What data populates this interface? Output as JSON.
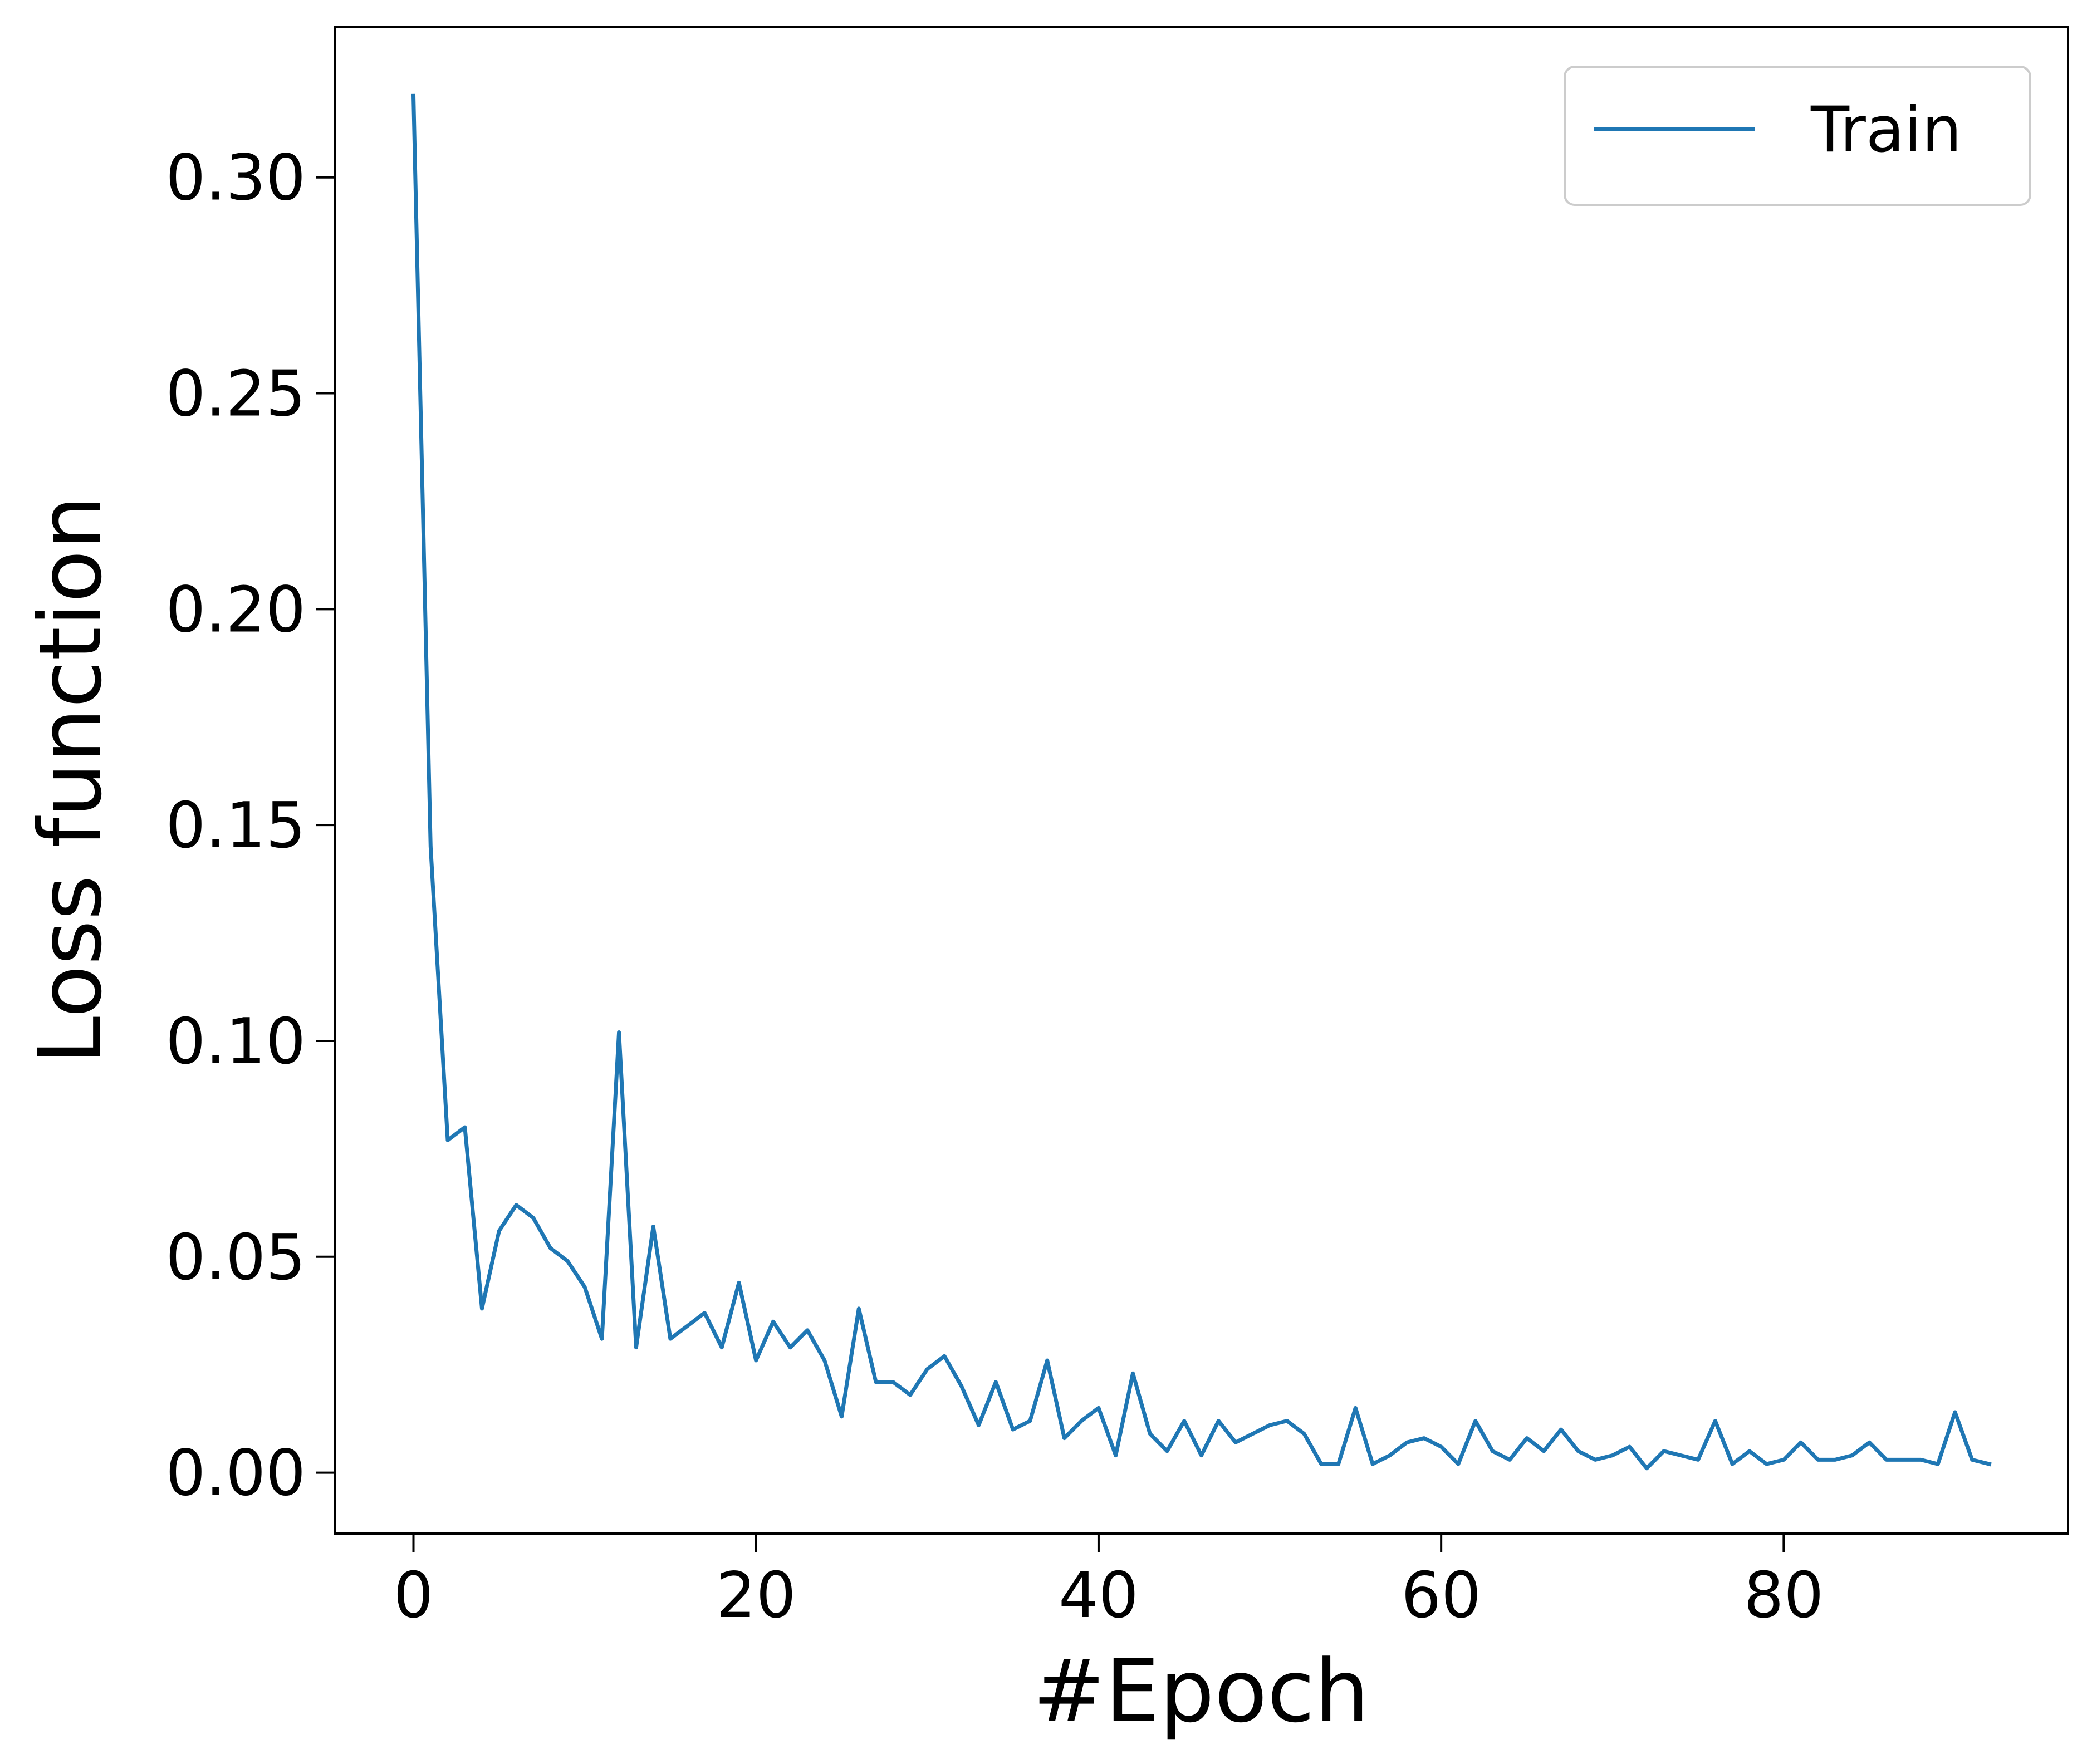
{
  "chart_data": {
    "type": "line",
    "xlabel": "#Epoch",
    "ylabel": "Loss function",
    "xlim": [
      -4.6,
      96.6
    ],
    "ylim": [
      -0.0141,
      0.3349
    ],
    "xticks": [
      0,
      20,
      40,
      60,
      80
    ],
    "xtick_labels": [
      "0",
      "20",
      "40",
      "60",
      "80"
    ],
    "yticks": [
      0.0,
      0.05,
      0.1,
      0.15,
      0.2,
      0.25,
      0.3
    ],
    "ytick_labels": [
      "0.00",
      "0.05",
      "0.10",
      "0.15",
      "0.20",
      "0.25",
      "0.30"
    ],
    "grid": false,
    "legend_position": "top-right",
    "series": [
      {
        "name": "Train",
        "color": "#1f77b4",
        "x": [
          0,
          1,
          2,
          3,
          4,
          5,
          6,
          7,
          8,
          9,
          10,
          11,
          12,
          13,
          14,
          15,
          16,
          17,
          18,
          19,
          20,
          21,
          22,
          23,
          24,
          25,
          26,
          27,
          28,
          29,
          30,
          31,
          32,
          33,
          34,
          35,
          36,
          37,
          38,
          39,
          40,
          41,
          42,
          43,
          44,
          45,
          46,
          47,
          48,
          49,
          50,
          51,
          52,
          53,
          54,
          55,
          56,
          57,
          58,
          59,
          60,
          61,
          62,
          63,
          64,
          65,
          66,
          67,
          68,
          69,
          70,
          71,
          72,
          73,
          74,
          75,
          76,
          77,
          78,
          79,
          80,
          81,
          82,
          83,
          84,
          85,
          86,
          87,
          88,
          89,
          90,
          91,
          92
        ],
        "y": [
          0.319,
          0.145,
          0.077,
          0.08,
          0.038,
          0.056,
          0.062,
          0.059,
          0.052,
          0.049,
          0.043,
          0.031,
          0.102,
          0.029,
          0.057,
          0.031,
          0.034,
          0.037,
          0.029,
          0.044,
          0.026,
          0.035,
          0.029,
          0.033,
          0.026,
          0.013,
          0.038,
          0.021,
          0.021,
          0.018,
          0.024,
          0.027,
          0.02,
          0.011,
          0.021,
          0.01,
          0.012,
          0.026,
          0.008,
          0.012,
          0.015,
          0.004,
          0.023,
          0.009,
          0.005,
          0.012,
          0.004,
          0.012,
          0.007,
          0.009,
          0.011,
          0.012,
          0.009,
          0.002,
          0.002,
          0.015,
          0.002,
          0.004,
          0.007,
          0.008,
          0.006,
          0.002,
          0.012,
          0.005,
          0.003,
          0.008,
          0.005,
          0.01,
          0.005,
          0.003,
          0.004,
          0.006,
          0.001,
          0.005,
          0.004,
          0.003,
          0.012,
          0.002,
          0.005,
          0.002,
          0.003,
          0.007,
          0.003,
          0.003,
          0.004,
          0.007,
          0.003,
          0.003,
          0.003,
          0.002,
          0.014,
          0.003,
          0.002
        ]
      }
    ]
  }
}
